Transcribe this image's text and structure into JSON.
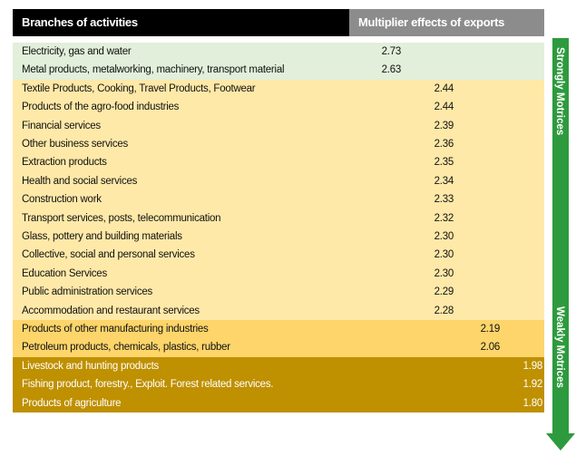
{
  "header": {
    "columns": [
      "Branches of activities",
      "Multiplier effects of exports"
    ]
  },
  "groups": [
    {
      "rows": [
        {
          "activity": "Electricity, gas and water",
          "value": "2.73"
        },
        {
          "activity": "Metal products, metalworking, machinery, transport material",
          "value": "2.63"
        }
      ]
    },
    {
      "rows": [
        {
          "activity": "Textile Products, Cooking, Travel Products, Footwear",
          "value": "2.44"
        },
        {
          "activity": "Products of the agro-food industries",
          "value": "2.44"
        },
        {
          "activity": "Financial services",
          "value": "2.39"
        },
        {
          "activity": "Other business services",
          "value": "2.36"
        },
        {
          "activity": "Extraction products",
          "value": "2.35"
        },
        {
          "activity": "Health and social services",
          "value": "2.34"
        },
        {
          "activity": "Construction work",
          "value": "2.33"
        },
        {
          "activity": "Transport services, posts, telecommunication",
          "value": "2.32"
        },
        {
          "activity": "Glass, pottery and building materials",
          "value": "2.30"
        },
        {
          "activity": "Collective, social and personal services",
          "value": "2.30"
        },
        {
          "activity": "Education Services",
          "value": "2.30"
        },
        {
          "activity": "Public administration services",
          "value": "2.29"
        },
        {
          "activity": "Accommodation and restaurant services",
          "value": "2.28"
        }
      ]
    },
    {
      "rows": [
        {
          "activity": "Products of other manufacturing industries",
          "value": "2.19"
        },
        {
          "activity": "Petroleum products, chemicals, plastics, rubber",
          "value": "2.06"
        }
      ]
    },
    {
      "rows": [
        {
          "activity": "Livestock and hunting products",
          "value": "1.98"
        },
        {
          "activity": "Fishing product, forestry., Exploit. Forest related services.",
          "value": "1.92"
        },
        {
          "activity": "Products of agriculture",
          "value": "1.80"
        }
      ]
    }
  ],
  "arrow": {
    "top_label": "Strongly Motrices",
    "bottom_label": "Weakly Motrices"
  }
}
